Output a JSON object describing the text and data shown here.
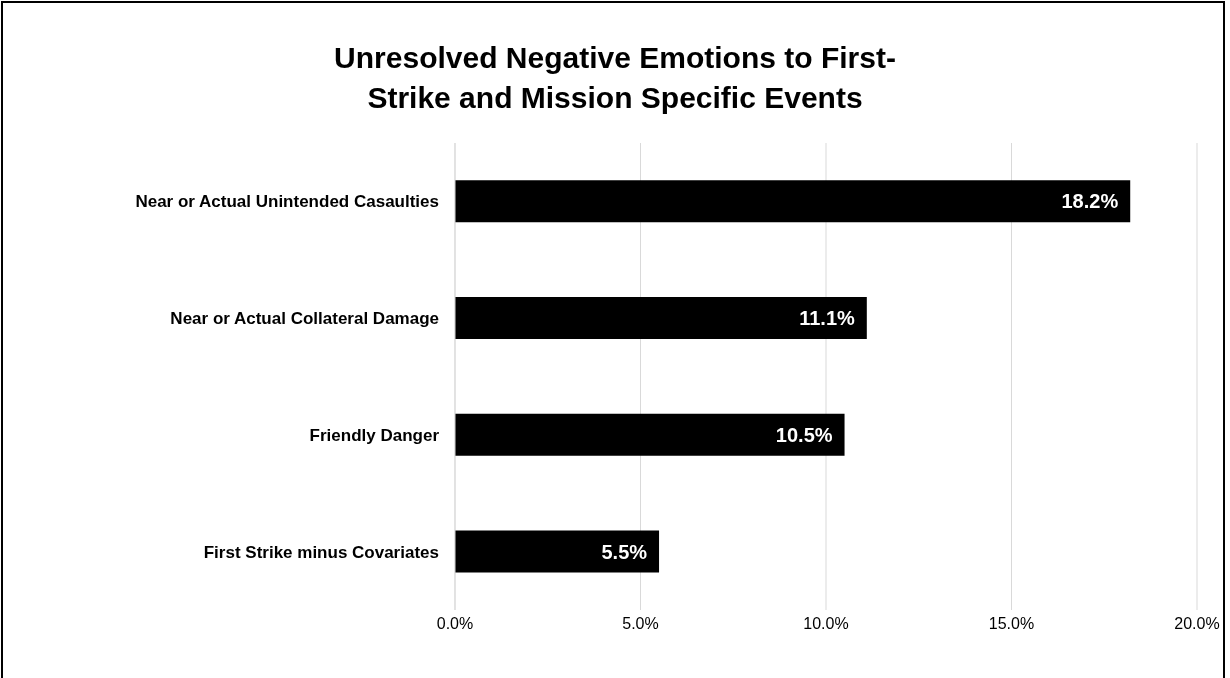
{
  "chart_data": {
    "type": "bar",
    "orientation": "horizontal",
    "title": "Unresolved Negative Emotions to First-Strike and Mission Specific Events",
    "categories": [
      "Near or Actual Unintended Casaulties",
      "Near or Actual Collateral Damage",
      "Friendly Danger",
      "First Strike minus Covariates"
    ],
    "values": [
      18.2,
      11.1,
      10.5,
      5.5
    ],
    "value_labels": [
      "18.2%",
      "11.1%",
      "10.5%",
      "5.5%"
    ],
    "color": "#000000",
    "xlim": [
      0,
      20
    ],
    "xticks": [
      {
        "value": 0,
        "label": "0.0%"
      },
      {
        "value": 5,
        "label": "5.0%"
      },
      {
        "value": 10,
        "label": "10.0%"
      },
      {
        "value": 15,
        "label": "15.0%"
      },
      {
        "value": 20,
        "label": "20.0%"
      }
    ],
    "grid": "x",
    "legend": false
  }
}
